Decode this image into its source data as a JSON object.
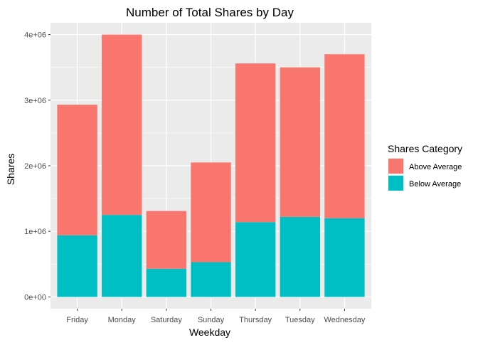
{
  "chart_data": {
    "type": "bar",
    "stacked": true,
    "title": "Number of Total Shares by Day",
    "xlabel": "Weekday",
    "ylabel": "Shares",
    "categories": [
      "Friday",
      "Monday",
      "Saturday",
      "Sunday",
      "Thursday",
      "Tuesday",
      "Wednesday"
    ],
    "series": [
      {
        "name": "Below Average",
        "color": "#00BFC4",
        "values": [
          940000,
          1250000,
          430000,
          530000,
          1140000,
          1220000,
          1200000
        ]
      },
      {
        "name": "Above Average",
        "color": "#F8766D",
        "values": [
          1990000,
          2750000,
          880000,
          1520000,
          2420000,
          2280000,
          2500000
        ]
      }
    ],
    "y_ticks": [
      0,
      1000000,
      2000000,
      3000000,
      4000000
    ],
    "y_tick_labels": [
      "0e+00",
      "1e+06",
      "2e+06",
      "3e+06",
      "4e+06"
    ],
    "ylim": [
      -180000,
      4180000
    ],
    "grid": true,
    "panel_background": "#EBEBEB",
    "legend": {
      "title": "Shares Category",
      "position": "right",
      "entries": [
        {
          "label": "Above Average",
          "color": "#F8766D"
        },
        {
          "label": "Below Average",
          "color": "#00BFC4"
        }
      ]
    }
  }
}
